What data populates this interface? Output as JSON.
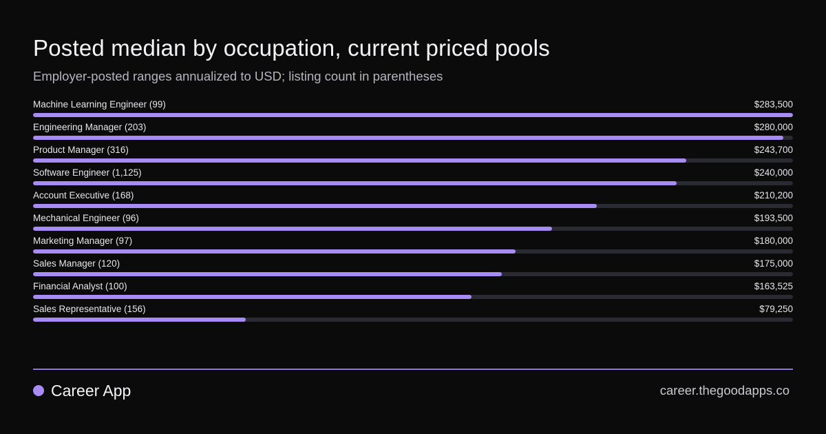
{
  "header": {
    "title": "Posted median by occupation, current priced pools",
    "subtitle": "Employer-posted ranges annualized to USD; listing count in parentheses"
  },
  "footer": {
    "brand_name": "Career App",
    "url": "career.thegoodapps.co"
  },
  "colors": {
    "background": "#0b0b0c",
    "bar_fill": "#a98bf5",
    "bar_track": "#2a2a33",
    "divider": "#8f75d8"
  },
  "chart_data": {
    "type": "bar",
    "orientation": "horizontal",
    "title": "Posted median by occupation, current priced pools",
    "subtitle": "Employer-posted ranges annualized to USD; listing count in parentheses",
    "xlim": [
      0,
      283500
    ],
    "grid": false,
    "categories": [
      "Machine Learning Engineer (99)",
      "Engineering Manager (203)",
      "Product Manager (316)",
      "Software Engineer (1,125)",
      "Account Executive (168)",
      "Mechanical Engineer (96)",
      "Marketing Manager (97)",
      "Sales Manager (120)",
      "Financial Analyst (100)",
      "Sales Representative (156)"
    ],
    "values": [
      283500,
      280000,
      243700,
      240000,
      210200,
      193500,
      180000,
      175000,
      163525,
      79250
    ],
    "value_labels": [
      "$283,500",
      "$280,000",
      "$243,700",
      "$240,000",
      "$210,200",
      "$193,500",
      "$180,000",
      "$175,000",
      "$163,525",
      "$79,250"
    ]
  }
}
